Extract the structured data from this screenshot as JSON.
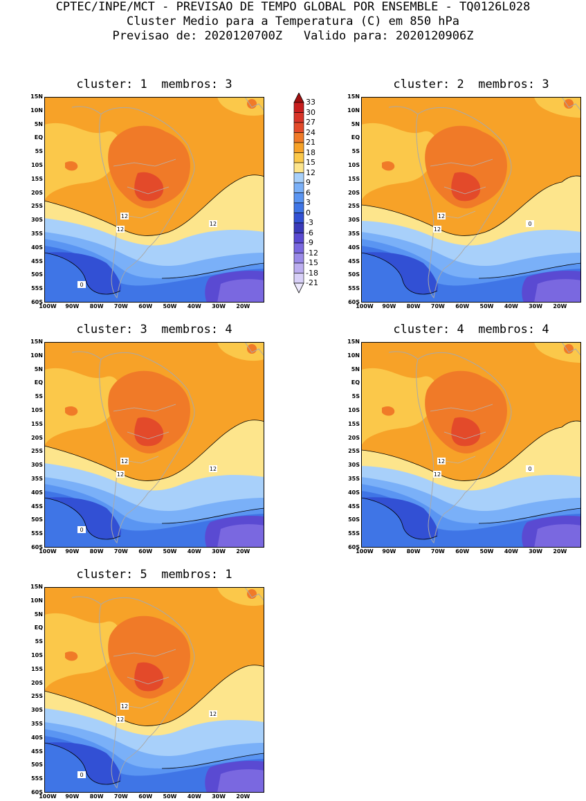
{
  "header": {
    "line1": "CPTEC/INPE/MCT - PREVISAO DE TEMPO GLOBAL POR ENSEMBLE - TQ0126L028",
    "line2": "Cluster Medio para a Temperatura (C) em 850 hPa",
    "line3": "Previsao de: 2020120700Z   Valido para: 2020120906Z"
  },
  "axes": {
    "lat_labels": [
      "15N",
      "10N",
      "5N",
      "EQ",
      "5S",
      "10S",
      "15S",
      "20S",
      "25S",
      "30S",
      "35S",
      "40S",
      "45S",
      "50S",
      "55S",
      "60S"
    ],
    "lon_labels": [
      "100W",
      "90W",
      "80W",
      "70W",
      "60W",
      "50W",
      "40W",
      "30W",
      "20W"
    ]
  },
  "colorbar": {
    "labels": [
      "33",
      "30",
      "27",
      "24",
      "21",
      "18",
      "15",
      "12",
      "9",
      "6",
      "3",
      "0",
      "-3",
      "-6",
      "-9",
      "-12",
      "-15",
      "-18",
      "-21"
    ],
    "colors": [
      "#a01010",
      "#c81e1e",
      "#d83428",
      "#e34a2a",
      "#f07a28",
      "#f7a228",
      "#fbc84a",
      "#fde58c",
      "#a8d0fa",
      "#7ab0f8",
      "#5a95f2",
      "#3f75e6",
      "#3250d4",
      "#3a3aba",
      "#5a4ad2",
      "#7a68e0",
      "#9a8ae8",
      "#bcaef0",
      "#d8d0f8",
      "#ece8fc"
    ]
  },
  "panels": [
    {
      "title": "cluster: 1  membros: 3",
      "contour_labels": [
        "12",
        "12",
        "12",
        "0"
      ]
    },
    {
      "title": "cluster: 2  membros: 3",
      "contour_labels": [
        "12",
        "12",
        "0"
      ]
    },
    {
      "title": "cluster: 3  membros: 4",
      "contour_labels": [
        "12",
        "12",
        "12",
        "0"
      ]
    },
    {
      "title": "cluster: 4  membros: 4",
      "contour_labels": [
        "12",
        "12",
        "0"
      ]
    },
    {
      "title": "cluster: 5  membros: 1",
      "contour_labels": [
        "12",
        "12",
        "12",
        "0"
      ]
    }
  ]
}
